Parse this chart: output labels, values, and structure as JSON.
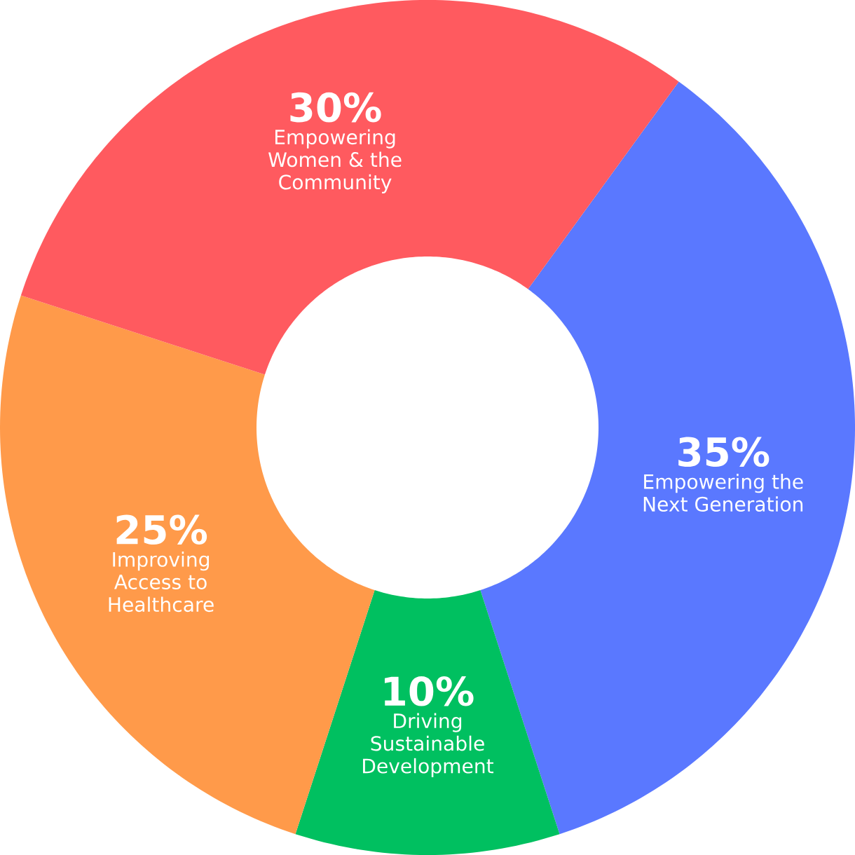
{
  "chart_data": {
    "type": "donut",
    "categories": [
      "Empowering the Next Generation",
      "Driving Sustainable Development",
      "Improving Access to Healthcare",
      "Empowering Women & the Community"
    ],
    "values": [
      35,
      10,
      25,
      30
    ],
    "value_labels": [
      "35%",
      "10%",
      "25%",
      "30%"
    ],
    "colors": [
      "#5a78ff",
      "#00c060",
      "#ff9a4a",
      "#ff5a5f"
    ]
  }
}
